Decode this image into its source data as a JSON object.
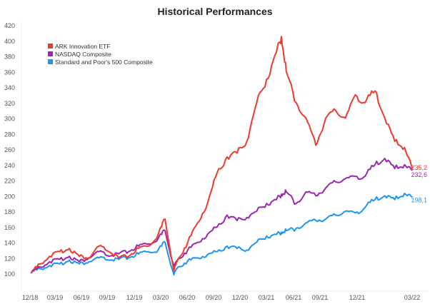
{
  "chart_data": {
    "type": "line",
    "title": "Historical Performances",
    "xlabel": "",
    "ylabel": "",
    "ylim": [
      80,
      420
    ],
    "yticks": [
      100,
      120,
      140,
      160,
      180,
      200,
      220,
      240,
      260,
      280,
      300,
      320,
      340,
      360,
      380,
      400,
      420
    ],
    "xticks": [
      "12/18",
      "03/19",
      "06/19",
      "09/19",
      "12/19",
      "03/20",
      "06/20",
      "09/20",
      "12/20",
      "03/21",
      "06/21",
      "09/21",
      "12/21",
      "03/22"
    ],
    "x_months_since_dec_2018": [
      0.1,
      1,
      2,
      3,
      4,
      5,
      6,
      7,
      8,
      9,
      10,
      11,
      12,
      13,
      13.7,
      14.6,
      15,
      16,
      17,
      18,
      19,
      20,
      21,
      22,
      23,
      24,
      25,
      25.5,
      26,
      27,
      28,
      29,
      30,
      31,
      32,
      33,
      34,
      35,
      36,
      37,
      38,
      38.8
    ],
    "legend_position": "top-left",
    "series": [
      {
        "name": "ARK Innovation ETF",
        "color": "#f0392b",
        "end_label": "235,2",
        "values": [
          100,
          112,
          122,
          128,
          132,
          122,
          120,
          135,
          128,
          120,
          122,
          132,
          135,
          150,
          170,
          103,
          118,
          140,
          165,
          190,
          230,
          250,
          255,
          270,
          320,
          350,
          385,
          405,
          360,
          320,
          300,
          265,
          300,
          310,
          300,
          330,
          320,
          335,
          300,
          270,
          262,
          235.2
        ]
      },
      {
        "name": "NASDAQ Composite",
        "color": "#9b27b0",
        "end_label": "232,6",
        "values": [
          100,
          108,
          115,
          118,
          122,
          115,
          120,
          128,
          122,
          125,
          128,
          135,
          138,
          145,
          155,
          108,
          118,
          130,
          140,
          150,
          160,
          175,
          168,
          172,
          180,
          190,
          195,
          202,
          205,
          190,
          205,
          200,
          210,
          218,
          222,
          225,
          225,
          240,
          248,
          235,
          240,
          232.6
        ]
      },
      {
        "name": "Standard and Poor's 500 Composite",
        "color": "#1e96f0",
        "end_label": "198,1",
        "values": [
          100,
          106,
          110,
          112,
          117,
          112,
          115,
          120,
          117,
          118,
          120,
          125,
          128,
          130,
          140,
          98,
          108,
          116,
          120,
          124,
          128,
          135,
          132,
          130,
          140,
          148,
          150,
          153,
          155,
          158,
          165,
          168,
          170,
          175,
          180,
          178,
          185,
          195,
          200,
          195,
          203,
          198.1
        ]
      }
    ]
  }
}
